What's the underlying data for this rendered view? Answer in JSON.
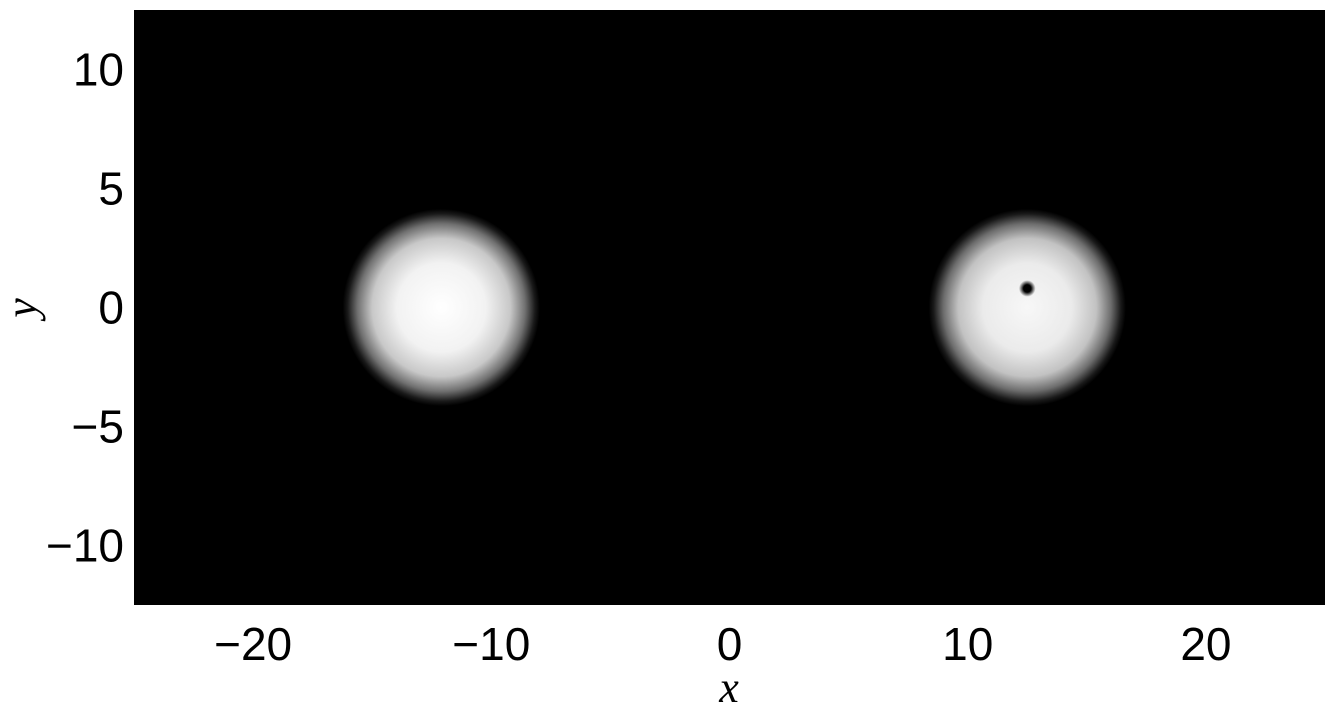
{
  "chart_data": {
    "type": "heatmap",
    "title": "",
    "xlabel": "x",
    "ylabel": "y",
    "xlim": [
      -25,
      25
    ],
    "ylim": [
      -12.5,
      12.5
    ],
    "xticks": [
      -20,
      -10,
      0,
      10,
      20
    ],
    "yticks": [
      -10,
      -5,
      0,
      5,
      10
    ],
    "xtick_labels": [
      "−20",
      "−10",
      "0",
      "10",
      "20"
    ],
    "ytick_labels": [
      "−10",
      "−5",
      "0",
      "5",
      "10"
    ],
    "colormap": "gray",
    "grid": false,
    "background_color": "#000000",
    "blobs": [
      {
        "name": "",
        "center": [
          -12.1,
          0.0
        ],
        "radius": 3.6,
        "peak": 1.0
      },
      {
        "name": "",
        "center": [
          12.5,
          0.0
        ],
        "radius": 3.6,
        "peak": 0.97,
        "vortex": {
          "center": [
            12.5,
            0.8
          ],
          "core_radius": 0.35
        }
      }
    ]
  }
}
